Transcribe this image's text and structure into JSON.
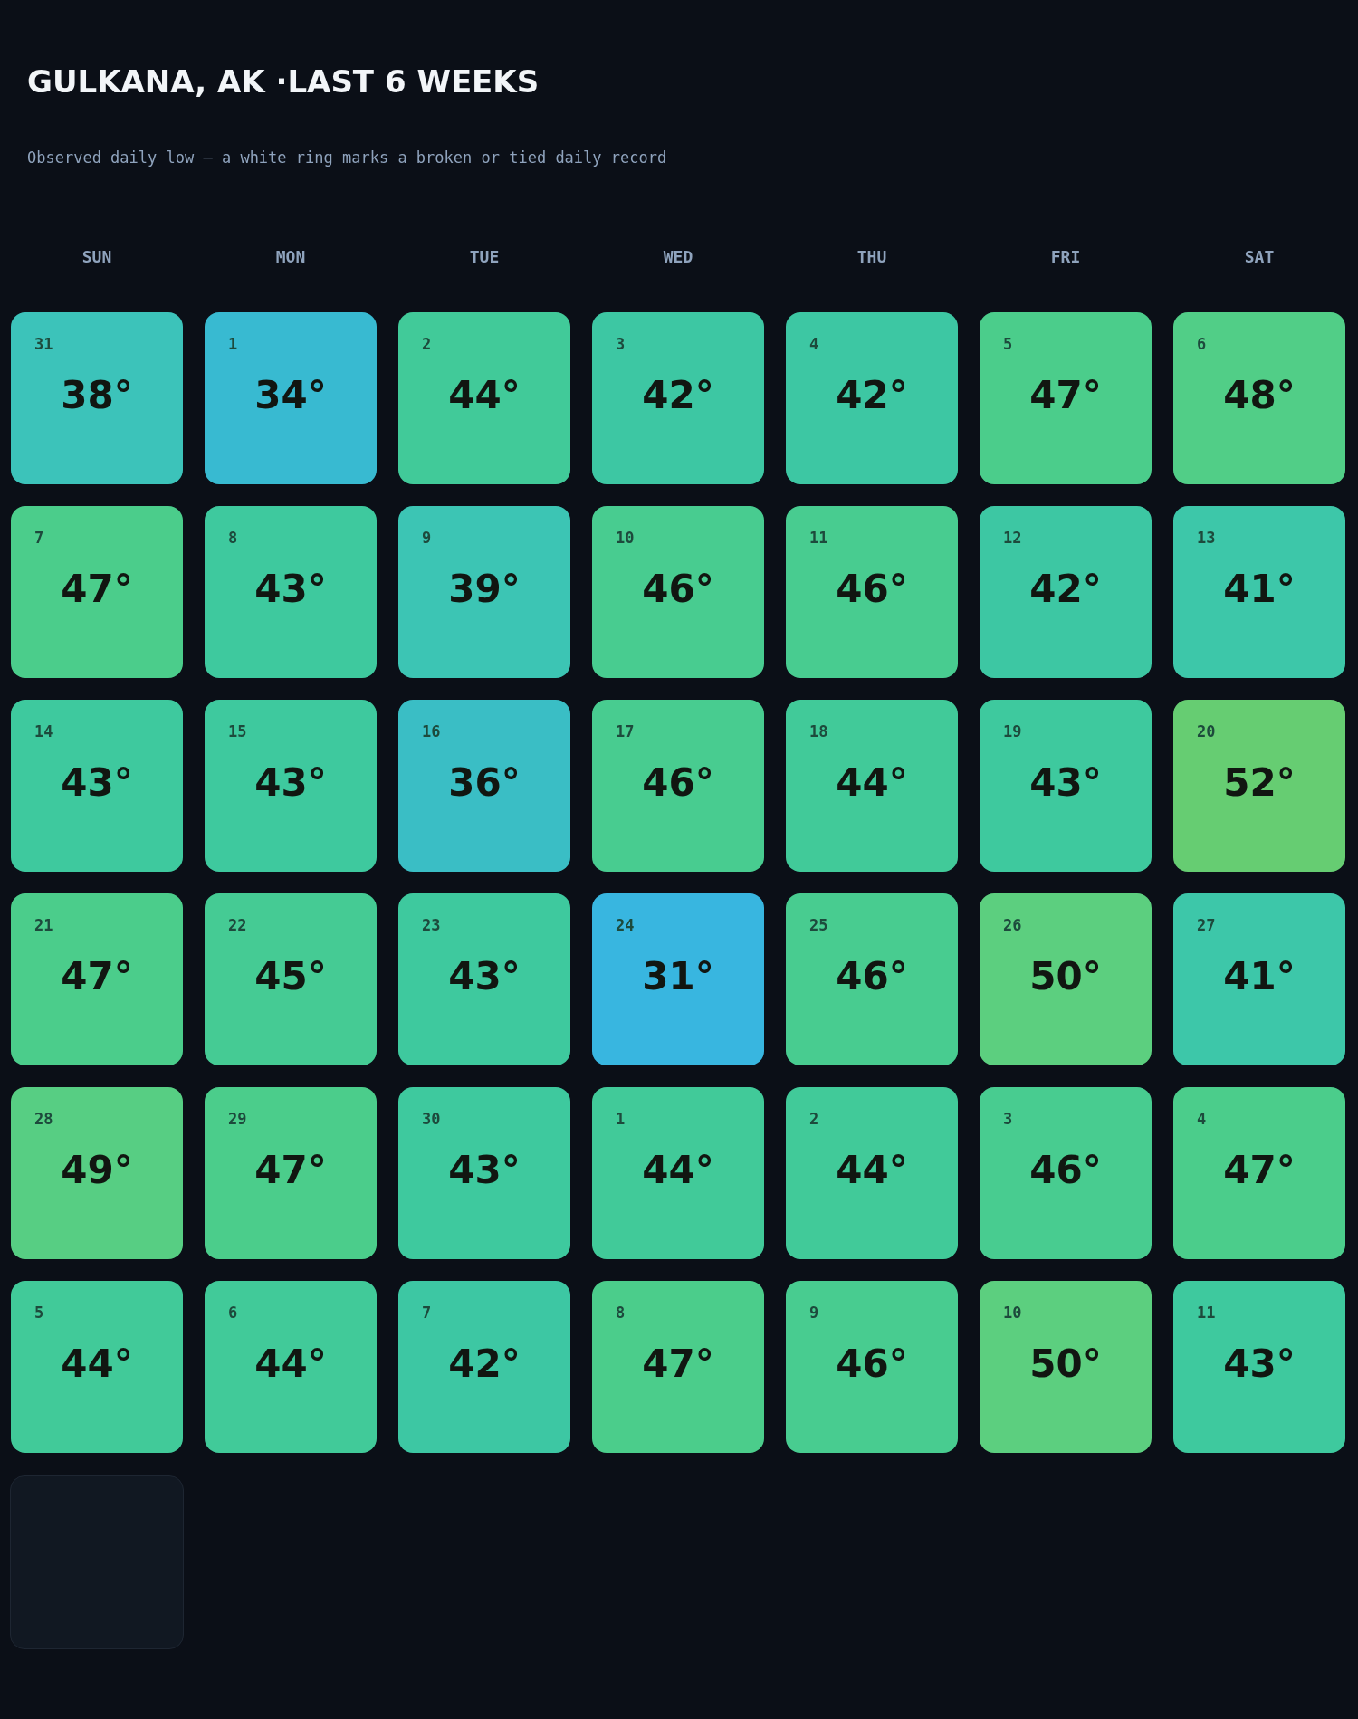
{
  "chart_data": {
    "type": "heatmap",
    "title": "GULKANA, AK ·LAST 6 WEEKS",
    "subtitle": "Observed daily low — a white ring marks a broken or tied daily record",
    "categories": [
      "SUN",
      "MON",
      "TUE",
      "WED",
      "THU",
      "FRI",
      "SAT"
    ],
    "y_categories": [
      null,
      null,
      null,
      null,
      null,
      null
    ],
    "cells": [
      [
        38,
        34,
        44,
        42,
        42,
        47,
        48
      ],
      [
        47,
        43,
        39,
        46,
        46,
        42,
        41
      ],
      [
        43,
        43,
        36,
        46,
        44,
        43,
        52
      ],
      [
        47,
        45,
        43,
        31,
        46,
        50,
        41
      ],
      [
        49,
        47,
        43,
        44,
        44,
        46,
        47
      ],
      [
        44,
        44,
        42,
        47,
        46,
        50,
        43
      ]
    ],
    "cell_labels": [
      [
        "38°",
        "34°",
        "44°",
        "42°",
        "42°",
        "47°",
        "48°"
      ],
      [
        "47°",
        "43°",
        "39°",
        "46°",
        "46°",
        "42°",
        "41°"
      ],
      [
        "43°",
        "43°",
        "36°",
        "46°",
        "44°",
        "43°",
        "52°"
      ],
      [
        "47°",
        "45°",
        "43°",
        "31°",
        "46°",
        "50°",
        "41°"
      ],
      [
        "49°",
        "47°",
        "43°",
        "44°",
        "44°",
        "46°",
        "47°"
      ],
      [
        "44°",
        "44°",
        "42°",
        "47°",
        "46°",
        "50°",
        "43°"
      ]
    ],
    "annotations": [
      "31",
      "1",
      "2",
      "3",
      "4",
      "5",
      "6",
      "7",
      "8",
      "9",
      "10",
      "11",
      "12",
      "13",
      "14",
      "15",
      "16",
      "17",
      "18",
      "19",
      "20",
      "21",
      "22",
      "23",
      "24",
      "25",
      "26",
      "27",
      "28",
      "29",
      "30",
      "1",
      "2",
      "3",
      "4",
      "5",
      "6",
      "7",
      "8",
      "9",
      "10",
      "11"
    ]
  }
}
